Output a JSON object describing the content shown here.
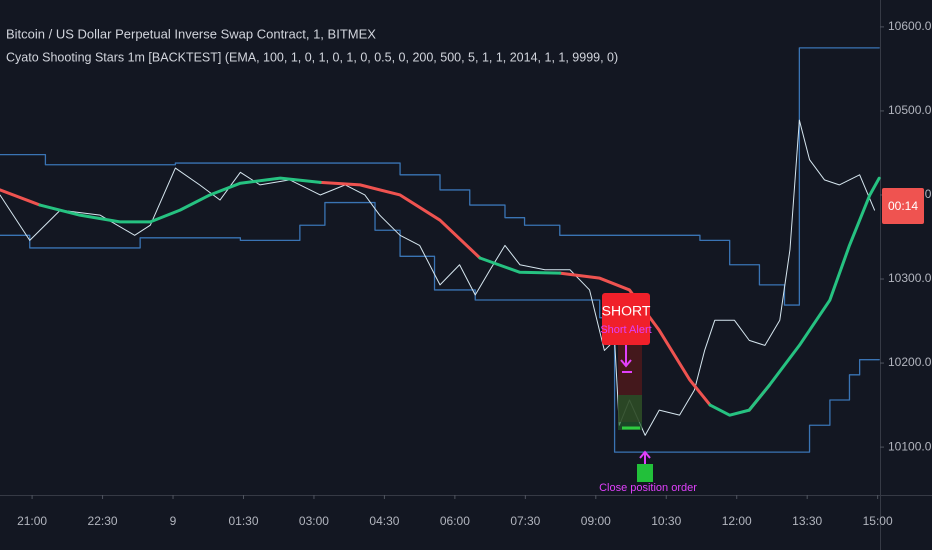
{
  "chart_data": {
    "type": "line",
    "title": "Bitcoin / US Dollar Perpetual Inverse Swap Contract, 1, BITMEX",
    "subtitle": "Cyato Shooting Stars 1m [BACKTEST] (EMA, 100, 1, 0, 1, 0, 1, 0, 0.5, 0, 200, 500, 5, 1, 1, 2014, 1, 1, 9999, 0)",
    "xlim": [
      -41,
      1083
    ],
    "ylim": [
      10043,
      10632
    ],
    "xticks": [
      {
        "value": 0,
        "label": "21:00"
      },
      {
        "value": 90,
        "label": "22:30"
      },
      {
        "value": 180,
        "label": "9"
      },
      {
        "value": 270,
        "label": "01:30"
      },
      {
        "value": 360,
        "label": "03:00"
      },
      {
        "value": 450,
        "label": "04:30"
      },
      {
        "value": 540,
        "label": "06:00"
      },
      {
        "value": 630,
        "label": "07:30"
      },
      {
        "value": 720,
        "label": "09:00"
      },
      {
        "value": 810,
        "label": "10:30"
      },
      {
        "value": 900,
        "label": "12:00"
      },
      {
        "value": 990,
        "label": "13:30"
      },
      {
        "value": 1080,
        "label": "15:00"
      }
    ],
    "yticks": [
      {
        "value": 10100,
        "label": "10100.0"
      },
      {
        "value": 10200,
        "label": "10200.0"
      },
      {
        "value": 10300,
        "label": "10300.0"
      },
      {
        "value": 10400,
        "label": "10400.0"
      },
      {
        "value": 10500,
        "label": "10500.0"
      },
      {
        "value": 10600,
        "label": "10600.0"
      }
    ],
    "grid": false,
    "series": [
      {
        "color": "#3a74b4",
        "width": 1.3,
        "step": true,
        "x": [
          -41,
          17,
          183,
          470,
          521,
          559,
          604,
          629,
          674,
          853,
          891,
          929,
          961,
          980,
          1082
        ],
        "values": [
          10448,
          10436,
          10438,
          10424,
          10406,
          10388,
          10373,
          10364,
          10352,
          10346,
          10317,
          10293,
          10269,
          10575,
          10575
        ]
      },
      {
        "color": "#3a74b4",
        "width": 1.3,
        "step": true,
        "x": [
          -41,
          -3,
          138,
          266,
          342,
          374,
          438,
          470,
          514,
          566,
          725,
          744,
          993,
          1019,
          1044,
          1057,
          1082
        ],
        "values": [
          10352,
          10337,
          10349,
          10346,
          10364,
          10391,
          10358,
          10327,
          10287,
          10275,
          10254,
          10094,
          10126,
          10156,
          10186,
          10204,
          10204
        ]
      },
      {
        "color": "#d6e6ef",
        "width": 1,
        "step": false,
        "x": [
          -41,
          -3,
          36,
          87,
          131,
          151,
          183,
          214,
          240,
          266,
          291,
          329,
          368,
          400,
          425,
          444,
          470,
          495,
          521,
          546,
          566,
          585,
          604,
          623,
          655,
          687,
          712,
          731,
          744,
          750,
          763,
          783,
          801,
          827,
          846,
          859,
          872,
          897,
          916,
          936,
          955,
          968,
          980,
          993,
          1012,
          1031,
          1057,
          1076
        ],
        "values": [
          10400,
          10346,
          10382,
          10376,
          10352,
          10364,
          10432,
          10412,
          10394,
          10427,
          10412,
          10418,
          10400,
          10412,
          10400,
          10376,
          10352,
          10340,
          10293,
          10317,
          10281,
          10311,
          10340,
          10317,
          10311,
          10311,
          10287,
          10215,
          10227,
          10126,
          10156,
          10114,
          10144,
          10138,
          10168,
          10215,
          10251,
          10251,
          10227,
          10221,
          10251,
          10335,
          10489,
          10442,
          10418,
          10412,
          10424,
          10382
        ]
      },
      {
        "color": "#ef5350",
        "width": 3,
        "step": false,
        "x": [
          -41,
          10,
          61,
          112,
          151,
          189,
          227,
          266,
          317,
          368,
          419,
          470,
          521,
          572,
          623,
          674,
          725,
          763,
          801,
          840,
          866,
          891,
          916,
          942,
          980,
          1019,
          1044,
          1070,
          1082
        ],
        "values": [
          10406,
          10388,
          null,
          null,
          null,
          null,
          null,
          null,
          null,
          10415,
          10412,
          10400,
          10370,
          10325,
          null,
          10307,
          10301,
          10287,
          10239,
          10180,
          10150,
          null,
          10144,
          10174,
          null,
          null,
          null,
          null,
          null
        ]
      },
      {
        "color": "#26c281",
        "width": 3,
        "step": false,
        "x": [
          -41,
          10,
          61,
          112,
          151,
          189,
          227,
          266,
          317,
          368,
          419,
          470,
          521,
          572,
          623,
          674,
          725,
          763,
          801,
          840,
          866,
          891,
          916,
          942,
          980,
          1019,
          1044,
          1070,
          1082
        ],
        "values": [
          null,
          10388,
          10376,
          10368,
          10368,
          10382,
          10400,
          10414,
          10420,
          10415,
          null,
          null,
          null,
          10325,
          10308,
          10307,
          null,
          null,
          null,
          null,
          10150,
          10138,
          10144,
          10174,
          10221,
          10275,
          10340,
          10400,
          10420
        ]
      }
    ],
    "annotations": {
      "short": "SHORT",
      "alert": "Short Alert",
      "close": "Close position order",
      "countdown": "00:14"
    }
  }
}
